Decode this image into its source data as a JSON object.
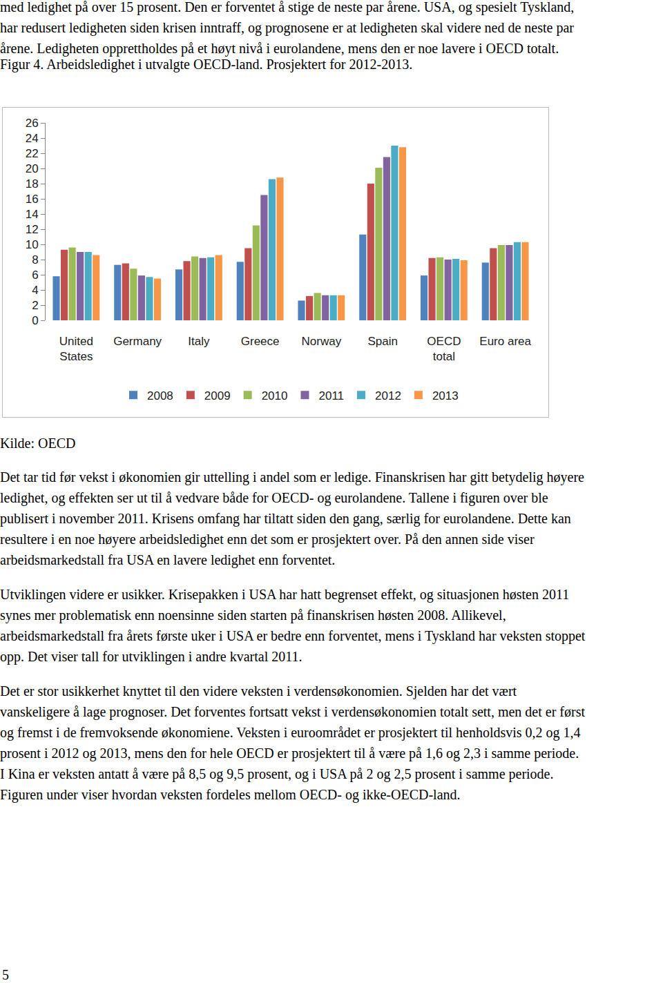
{
  "document": {
    "intro": [
      "med ledighet på over 15 prosent. Den er forventet å stige de neste par årene. USA, og spesielt Tyskland,",
      "har redusert ledigheten siden krisen inntraff, og prognosene er at ledigheten skal videre ned de neste par",
      "årene. Ledigheten opprettholdes på et høyt nivå i eurolandene, mens den er noe lavere i OECD totalt."
    ],
    "caption": "Figur 4. Arbeidsledighet i utvalgte OECD-land. Prosjektert for 2012-2013.",
    "source": "Kilde: OECD",
    "paragraphs": [
      [
        "Det tar tid før vekst i økonomien gir uttelling i andel som er ledige. Finanskrisen har gitt betydelig høyere",
        "ledighet, og effekten ser ut til å vedvare både for OECD- og eurolandene. Tallene i figuren over ble",
        "publisert i november 2011. Krisens omfang har tiltatt siden den gang, særlig for eurolandene. Dette kan",
        "resultere i en noe høyere arbeidsledighet enn det som er prosjektert over. På den annen side viser",
        "arbeidsmarkedstall fra USA en lavere ledighet enn forventet."
      ],
      [
        "Utviklingen videre er usikker. Krisepakken i USA har hatt begrenset effekt, og situasjonen høsten 2011",
        "synes mer problematisk enn noensinne siden starten på finanskrisen høsten 2008. Allikevel,",
        "arbeidsmarkedstall fra årets første uker i USA er bedre enn forventet, mens i Tyskland har veksten stoppet",
        "opp. Det viser tall for utviklingen i andre kvartal 2011."
      ],
      [
        "Det er stor usikkerhet knyttet til den videre veksten i verdensøkonomien. Sjelden har det vært",
        "vanskeligere å lage prognoser. Det forventes fortsatt vekst i verdensøkonomien totalt sett, men det er først",
        "og fremst i de fremvoksende økonomiene. Veksten i euroområdet er prosjektert til henholdsvis 0,2 og 1,4",
        "prosent i 2012 og 2013, mens den for hele OECD er prosjektert til å være på 1,6 og 2,3 i samme periode.",
        "I Kina er veksten antatt å være på 8,5 og 9,5 prosent, og i USA på 2 og 2,5 prosent i samme periode.",
        "Figuren under viser hvordan veksten fordeles mellom OECD- og ikke-OECD-land."
      ]
    ],
    "page_number": "5"
  },
  "chart_data": {
    "type": "bar",
    "categories": [
      "United States",
      "Germany",
      "Italy",
      "Greece",
      "Norway",
      "Spain",
      "OECD total",
      "Euro area"
    ],
    "series": [
      {
        "name": "2008",
        "color": "#4f81bd",
        "values": [
          5.8,
          7.3,
          6.7,
          7.7,
          2.6,
          11.3,
          5.9,
          7.6
        ]
      },
      {
        "name": "2009",
        "color": "#c0504d",
        "values": [
          9.3,
          7.5,
          7.8,
          9.5,
          3.2,
          18.0,
          8.2,
          9.5
        ]
      },
      {
        "name": "2010",
        "color": "#9bbb59",
        "values": [
          9.6,
          6.8,
          8.4,
          12.5,
          3.6,
          20.1,
          8.3,
          9.9
        ]
      },
      {
        "name": "2011",
        "color": "#8064a2",
        "values": [
          9.0,
          5.9,
          8.2,
          16.5,
          3.3,
          21.5,
          8.0,
          9.9
        ]
      },
      {
        "name": "2012",
        "color": "#4bacc6",
        "values": [
          9.0,
          5.7,
          8.3,
          18.6,
          3.3,
          23.0,
          8.1,
          10.3
        ]
      },
      {
        "name": "2013",
        "color": "#f79646",
        "values": [
          8.6,
          5.5,
          8.6,
          18.8,
          3.3,
          22.8,
          7.9,
          10.3
        ]
      }
    ],
    "ylim": [
      0,
      26
    ],
    "yticks": [
      0,
      2,
      4,
      6,
      8,
      10,
      12,
      14,
      16,
      18,
      20,
      22,
      24,
      26
    ],
    "grid": false,
    "legend": "bottom"
  }
}
